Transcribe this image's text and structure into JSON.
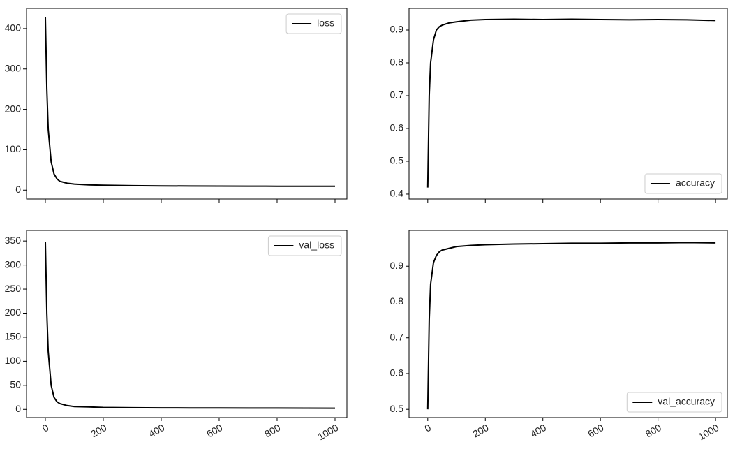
{
  "chart_data": [
    {
      "type": "line",
      "xlim": [
        -65,
        1041
      ],
      "xticks": [
        0,
        200,
        400,
        600,
        800,
        1000
      ],
      "ylim": [
        -22,
        450
      ],
      "yticks": [
        0,
        100,
        200,
        300,
        400
      ],
      "legend": "upper right",
      "x": [
        0,
        5,
        10,
        20,
        30,
        40,
        50,
        75,
        100,
        150,
        200,
        300,
        400,
        500,
        600,
        700,
        800,
        900,
        1000
      ],
      "series": [
        {
          "name": "loss",
          "color": "#000000",
          "values": [
            428,
            250,
            150,
            70,
            40,
            28,
            22,
            17,
            15,
            13,
            12,
            11,
            10.5,
            10.2,
            10,
            9.8,
            9.7,
            9.6,
            9.5
          ]
        }
      ]
    },
    {
      "type": "line",
      "xlim": [
        -65,
        1041
      ],
      "xticks": [
        0,
        200,
        400,
        600,
        800,
        1000
      ],
      "ylim": [
        0.385,
        0.966
      ],
      "yticks": [
        0.4,
        0.5,
        0.6,
        0.7,
        0.8,
        0.9
      ],
      "legend": "lower right",
      "x": [
        0,
        5,
        10,
        20,
        30,
        40,
        50,
        75,
        100,
        150,
        200,
        300,
        400,
        500,
        600,
        700,
        800,
        900,
        1000
      ],
      "series": [
        {
          "name": "accuracy",
          "color": "#000000",
          "values": [
            0.42,
            0.7,
            0.8,
            0.87,
            0.9,
            0.91,
            0.915,
            0.922,
            0.925,
            0.93,
            0.932,
            0.933,
            0.932,
            0.933,
            0.932,
            0.931,
            0.932,
            0.931,
            0.929
          ]
        }
      ]
    },
    {
      "type": "line",
      "xlim": [
        -65,
        1041
      ],
      "xticks": [
        0,
        200,
        400,
        600,
        800,
        1000
      ],
      "ylim": [
        -17,
        372
      ],
      "yticks": [
        0,
        50,
        100,
        150,
        200,
        250,
        300,
        350
      ],
      "legend": "upper right",
      "x": [
        0,
        5,
        10,
        20,
        30,
        40,
        50,
        75,
        100,
        150,
        200,
        300,
        400,
        500,
        600,
        700,
        800,
        900,
        1000
      ],
      "series": [
        {
          "name": "val_loss",
          "color": "#000000",
          "values": [
            348,
            200,
            120,
            50,
            25,
            16,
            12,
            8,
            6,
            5,
            4,
            3.5,
            3.2,
            3,
            2.9,
            2.8,
            2.7,
            2.6,
            2.5
          ]
        }
      ]
    },
    {
      "type": "line",
      "xlim": [
        -65,
        1041
      ],
      "xticks": [
        0,
        200,
        400,
        600,
        800,
        1000
      ],
      "ylim": [
        0.477,
        1.0
      ],
      "yticks": [
        0.5,
        0.6,
        0.7,
        0.8,
        0.9
      ],
      "legend": "lower right",
      "x": [
        0,
        5,
        10,
        20,
        30,
        40,
        50,
        75,
        100,
        150,
        200,
        300,
        400,
        500,
        600,
        700,
        800,
        900,
        1000
      ],
      "series": [
        {
          "name": "val_accuracy",
          "color": "#000000",
          "values": [
            0.5,
            0.75,
            0.85,
            0.91,
            0.93,
            0.94,
            0.945,
            0.95,
            0.955,
            0.958,
            0.96,
            0.962,
            0.963,
            0.964,
            0.964,
            0.965,
            0.965,
            0.966,
            0.965
          ]
        }
      ]
    }
  ]
}
